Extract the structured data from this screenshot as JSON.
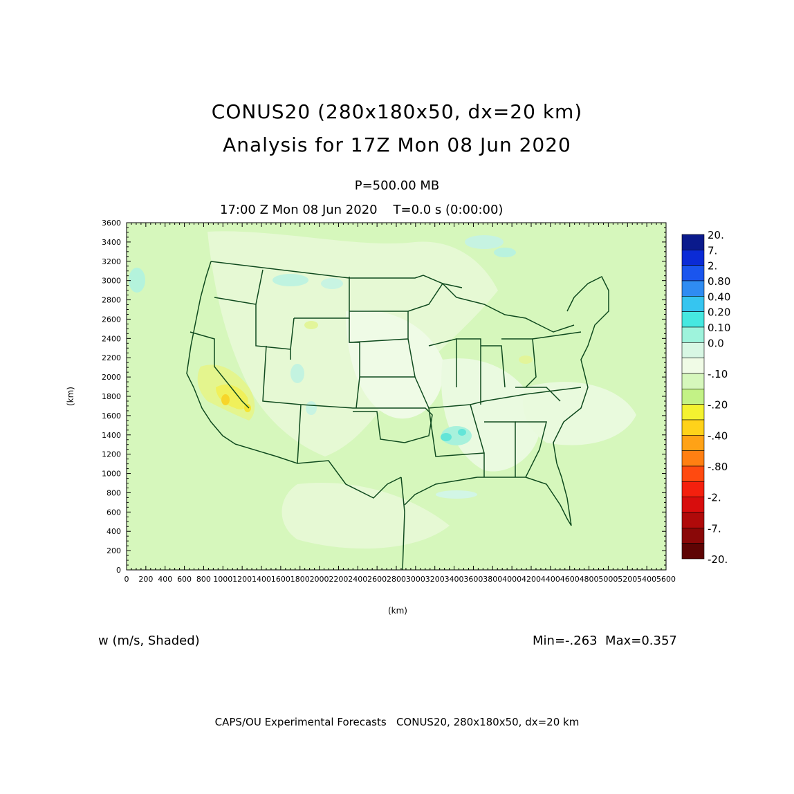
{
  "title": {
    "line1": "CONUS20 (280x180x50, dx=20 km)",
    "line2": "Analysis for 17Z Mon 08 Jun 2020"
  },
  "subtitle": {
    "level": "P=500.00 MB",
    "time": "17:00 Z Mon 08 Jun 2020    T=0.0 s (0:00:00)"
  },
  "axes": {
    "x_label": "(km)",
    "y_label": "(km)",
    "x_ticks": [
      0,
      200,
      400,
      600,
      800,
      1000,
      1200,
      1400,
      1600,
      1800,
      2000,
      2200,
      2400,
      2600,
      2800,
      3000,
      3200,
      3400,
      3600,
      3800,
      4000,
      4200,
      4400,
      4600,
      4800,
      5000,
      5200,
      5400,
      5600
    ],
    "y_ticks": [
      0,
      200,
      400,
      600,
      800,
      1000,
      1200,
      1400,
      1600,
      1800,
      2000,
      2200,
      2400,
      2600,
      2800,
      3000,
      3200,
      3400,
      3600
    ],
    "x_range": [
      0,
      5600
    ],
    "y_range": [
      0,
      3600
    ]
  },
  "colorbar": {
    "levels": [
      {
        "label": "20.",
        "color": "#0a1a8c"
      },
      {
        "label": "7.",
        "color": "#0b2bd6"
      },
      {
        "label": "2.",
        "color": "#1a55ee"
      },
      {
        "label": "0.80",
        "color": "#2f8cf2"
      },
      {
        "label": "0.40",
        "color": "#36c5f0"
      },
      {
        "label": "0.20",
        "color": "#46e8e0"
      },
      {
        "label": "0.10",
        "color": "#9ef3dc"
      },
      {
        "label": "0.0",
        "color": "#d8f7e4"
      },
      {
        "label": "",
        "color": "#f0fbe6"
      },
      {
        "label": "-.10",
        "color": "#d6f7bc"
      },
      {
        "label": "",
        "color": "#c3f286"
      },
      {
        "label": "-.20",
        "color": "#f4f230"
      },
      {
        "label": "",
        "color": "#ffd21a"
      },
      {
        "label": "-.40",
        "color": "#ffa216"
      },
      {
        "label": "",
        "color": "#ff7f12"
      },
      {
        "label": "-.80",
        "color": "#ff4a10"
      },
      {
        "label": "",
        "color": "#f4200e"
      },
      {
        "label": "-2.",
        "color": "#d80d0d"
      },
      {
        "label": "",
        "color": "#b00a0a"
      },
      {
        "label": "-7.",
        "color": "#8a0808"
      },
      {
        "label": "",
        "color": "#5e0404"
      },
      {
        "label": "-20.",
        "color": ""
      }
    ]
  },
  "field": {
    "variable": "w (m/s, Shaded)",
    "range_text": "Min=-.263  Max=0.357",
    "min": -0.263,
    "max": 0.357
  },
  "credit": "CAPS/OU Experimental Forecasts   CONUS20, 280x180x50, dx=20 km",
  "colors": {
    "background_field": "#d6f7bc",
    "boundaries": "#0f4a1e"
  }
}
